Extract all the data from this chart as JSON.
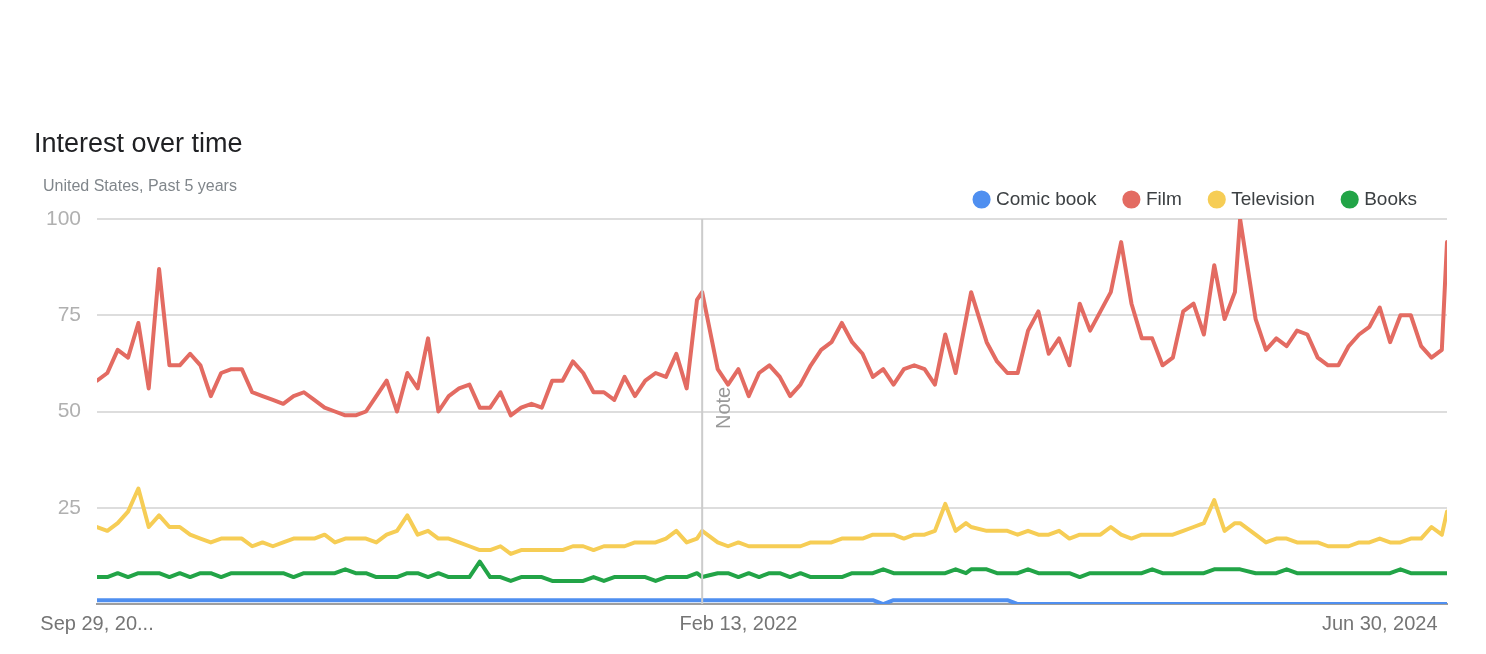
{
  "chart_data": {
    "type": "line",
    "title": "Interest over time",
    "subtitle": "United States, Past 5 years",
    "x": [
      "2019-09-29",
      "2019-10-13",
      "2019-10-27",
      "2019-11-10",
      "2019-11-24",
      "2019-12-08",
      "2019-12-22",
      "2020-01-05",
      "2020-01-19",
      "2020-02-02",
      "2020-02-16",
      "2020-03-01",
      "2020-03-15",
      "2020-03-29",
      "2020-04-12",
      "2020-04-26",
      "2020-05-10",
      "2020-05-24",
      "2020-06-07",
      "2020-06-21",
      "2020-07-05",
      "2020-07-19",
      "2020-08-02",
      "2020-08-16",
      "2020-08-30",
      "2020-09-13",
      "2020-09-27",
      "2020-10-11",
      "2020-10-25",
      "2020-11-08",
      "2020-11-22",
      "2020-12-06",
      "2020-12-20",
      "2021-01-03",
      "2021-01-17",
      "2021-01-31",
      "2021-02-14",
      "2021-02-28",
      "2021-03-14",
      "2021-03-28",
      "2021-04-11",
      "2021-04-25",
      "2021-05-09",
      "2021-05-23",
      "2021-06-06",
      "2021-06-20",
      "2021-07-04",
      "2021-07-18",
      "2021-08-01",
      "2021-08-15",
      "2021-08-29",
      "2021-09-12",
      "2021-09-26",
      "2021-10-10",
      "2021-10-24",
      "2021-11-07",
      "2021-11-21",
      "2021-12-05",
      "2021-12-19",
      "2021-12-26",
      "2022-01-16",
      "2022-01-30",
      "2022-02-13",
      "2022-02-27",
      "2022-03-13",
      "2022-03-27",
      "2022-04-10",
      "2022-04-24",
      "2022-05-08",
      "2022-05-22",
      "2022-06-05",
      "2022-06-19",
      "2022-07-03",
      "2022-07-17",
      "2022-07-31",
      "2022-08-14",
      "2022-08-28",
      "2022-09-11",
      "2022-09-25",
      "2022-10-09",
      "2022-10-23",
      "2022-11-06",
      "2022-11-20",
      "2022-12-04",
      "2022-12-18",
      "2022-12-25",
      "2023-01-15",
      "2023-01-29",
      "2023-02-12",
      "2023-02-26",
      "2023-03-12",
      "2023-03-26",
      "2023-04-09",
      "2023-04-23",
      "2023-05-07",
      "2023-05-21",
      "2023-06-04",
      "2023-06-18",
      "2023-07-02",
      "2023-07-16",
      "2023-07-30",
      "2023-08-13",
      "2023-08-27",
      "2023-09-10",
      "2023-09-24",
      "2023-10-08",
      "2023-10-22",
      "2023-11-05",
      "2023-11-19",
      "2023-12-03",
      "2023-12-17",
      "2023-12-24",
      "2024-01-14",
      "2024-01-28",
      "2024-02-11",
      "2024-02-25",
      "2024-03-10",
      "2024-03-24",
      "2024-04-07",
      "2024-04-21",
      "2024-05-05",
      "2024-05-19",
      "2024-06-02",
      "2024-06-16",
      "2024-06-30",
      "2024-07-14",
      "2024-07-28",
      "2024-08-11",
      "2024-08-25",
      "2024-09-08",
      "2024-09-22",
      "2024-09-29"
    ],
    "series": [
      {
        "name": "Comic book",
        "color": "#4f8ff0",
        "values": [
          1,
          1,
          1,
          1,
          1,
          1,
          1,
          1,
          1,
          1,
          1,
          1,
          1,
          1,
          1,
          1,
          1,
          1,
          1,
          1,
          1,
          1,
          1,
          1,
          1,
          1,
          1,
          1,
          1,
          1,
          1,
          1,
          1,
          1,
          1,
          1,
          1,
          1,
          1,
          1,
          1,
          1,
          1,
          1,
          1,
          1,
          1,
          1,
          1,
          1,
          1,
          1,
          1,
          1,
          1,
          1,
          1,
          1,
          1,
          1,
          1,
          1,
          1,
          1,
          1,
          1,
          1,
          1,
          1,
          1,
          1,
          1,
          1,
          1,
          1,
          1,
          0,
          1,
          1,
          1,
          1,
          1,
          1,
          1,
          1,
          1,
          1,
          1,
          1,
          0,
          0,
          0,
          0,
          0,
          0,
          0,
          0,
          0,
          0,
          0,
          0,
          0,
          0,
          0,
          0,
          0,
          0,
          0,
          0,
          0,
          0,
          0,
          0,
          0,
          0,
          0,
          0,
          0,
          0,
          0,
          0,
          0,
          0,
          0,
          0,
          0,
          0,
          0,
          0,
          0,
          0,
          0
        ]
      },
      {
        "name": "Film",
        "color": "#e36b62",
        "values": [
          58,
          60,
          66,
          64,
          73,
          56,
          87,
          62,
          62,
          65,
          62,
          54,
          60,
          61,
          61,
          55,
          54,
          53,
          52,
          54,
          55,
          53,
          51,
          50,
          49,
          49,
          50,
          54,
          58,
          50,
          60,
          56,
          69,
          50,
          54,
          56,
          57,
          51,
          51,
          55,
          49,
          51,
          52,
          51,
          58,
          58,
          63,
          60,
          55,
          55,
          53,
          59,
          54,
          58,
          60,
          59,
          65,
          56,
          79,
          81,
          61,
          57,
          61,
          54,
          60,
          62,
          59,
          54,
          57,
          62,
          66,
          68,
          73,
          68,
          65,
          59,
          61,
          57,
          61,
          62,
          61,
          57,
          70,
          60,
          74,
          81,
          68,
          63,
          60,
          60,
          71,
          76,
          65,
          69,
          62,
          78,
          71,
          76,
          81,
          94,
          78,
          69,
          69,
          62,
          64,
          76,
          78,
          70,
          88,
          74,
          81,
          100,
          74,
          66,
          69,
          67,
          71,
          70,
          64,
          62,
          62,
          67,
          70,
          72,
          77,
          68,
          75,
          75,
          67,
          64,
          66,
          94
        ]
      },
      {
        "name": "Television",
        "color": "#f6cd55",
        "values": [
          20,
          19,
          21,
          24,
          30,
          20,
          23,
          20,
          20,
          18,
          17,
          16,
          17,
          17,
          17,
          15,
          16,
          15,
          16,
          17,
          17,
          17,
          18,
          16,
          17,
          17,
          17,
          16,
          18,
          19,
          23,
          18,
          19,
          17,
          17,
          16,
          15,
          14,
          14,
          15,
          13,
          14,
          14,
          14,
          14,
          14,
          15,
          15,
          14,
          15,
          15,
          15,
          16,
          16,
          16,
          17,
          19,
          16,
          17,
          19,
          16,
          15,
          16,
          15,
          15,
          15,
          15,
          15,
          15,
          16,
          16,
          16,
          17,
          17,
          17,
          18,
          18,
          18,
          17,
          18,
          18,
          19,
          26,
          19,
          21,
          20,
          19,
          19,
          19,
          18,
          19,
          18,
          18,
          19,
          17,
          18,
          18,
          18,
          20,
          18,
          17,
          18,
          18,
          18,
          18,
          19,
          20,
          21,
          27,
          19,
          21,
          21,
          18,
          16,
          17,
          17,
          16,
          16,
          16,
          15,
          15,
          15,
          16,
          16,
          17,
          16,
          16,
          17,
          17,
          20,
          18,
          24
        ]
      },
      {
        "name": "Books",
        "color": "#22a447",
        "values": [
          7,
          7,
          8,
          7,
          8,
          8,
          8,
          7,
          8,
          7,
          8,
          8,
          7,
          8,
          8,
          8,
          8,
          8,
          8,
          7,
          8,
          8,
          8,
          8,
          9,
          8,
          8,
          7,
          7,
          7,
          8,
          8,
          7,
          8,
          7,
          7,
          7,
          11,
          7,
          7,
          6,
          7,
          7,
          7,
          6,
          6,
          6,
          6,
          7,
          6,
          7,
          7,
          7,
          7,
          6,
          7,
          7,
          7,
          8,
          7,
          8,
          8,
          7,
          8,
          7,
          8,
          8,
          7,
          8,
          7,
          7,
          7,
          7,
          8,
          8,
          8,
          9,
          8,
          8,
          8,
          8,
          8,
          8,
          9,
          8,
          9,
          9,
          8,
          8,
          8,
          9,
          8,
          8,
          8,
          8,
          7,
          8,
          8,
          8,
          8,
          8,
          8,
          9,
          8,
          8,
          8,
          8,
          8,
          9,
          9,
          9,
          9,
          8,
          8,
          8,
          9,
          8,
          8,
          8,
          8,
          8,
          8,
          8,
          8,
          8,
          8,
          9,
          8,
          8,
          8,
          8,
          8
        ]
      }
    ],
    "xlim": [
      "2019-09-29",
      "2024-09-29"
    ],
    "xticks": [
      {
        "value": "2019-09-29",
        "label": "Sep 29, 20..."
      },
      {
        "value": "2022-02-13",
        "label": "Feb 13, 2022"
      },
      {
        "value": "2024-06-30",
        "label": "Jun 30, 2024"
      }
    ],
    "ylim": [
      0,
      100
    ],
    "yticks": [
      25,
      50,
      75,
      100
    ],
    "grid": "y",
    "legend": "top right",
    "ref_lines": [
      {
        "axis": "x",
        "value": "2021-12-26",
        "label": "Note",
        "color": "#cccccc"
      }
    ]
  }
}
